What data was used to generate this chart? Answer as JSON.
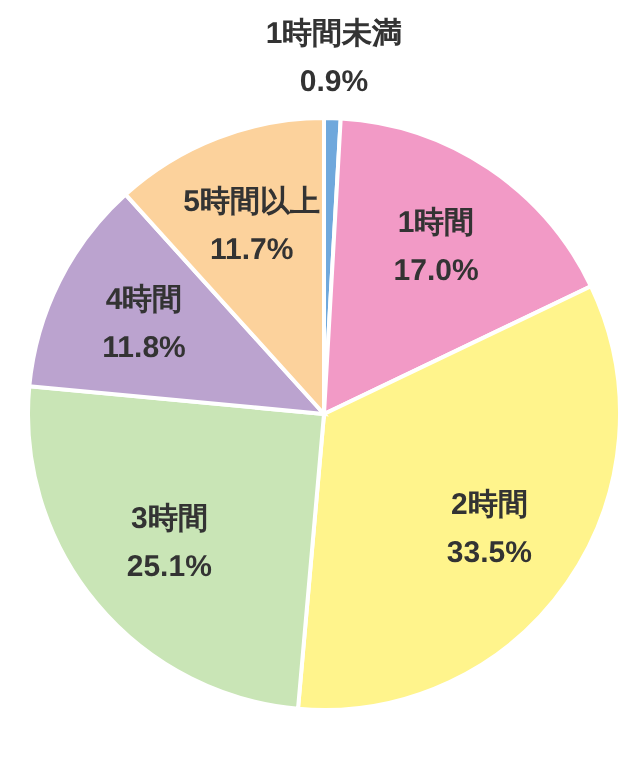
{
  "chart_data": {
    "type": "pie",
    "categories": [
      "1時間未満",
      "1時間",
      "2時間",
      "3時間",
      "4時間",
      "5時間以上"
    ],
    "values": [
      0.9,
      17.0,
      33.5,
      25.1,
      11.8,
      11.7
    ],
    "value_labels": [
      "0.9%",
      "17.0%",
      "33.5%",
      "25.1%",
      "11.8%",
      "11.7%"
    ],
    "colors": [
      "#6fa8dc",
      "#f29ac6",
      "#fff48c",
      "#c9e5b6",
      "#bba3cf",
      "#fcd29c"
    ]
  }
}
